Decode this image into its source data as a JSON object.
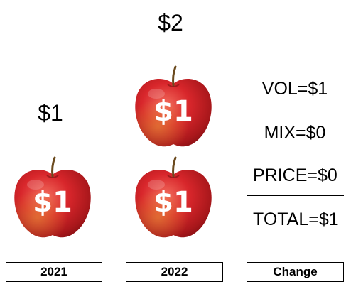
{
  "columns": {
    "year1": {
      "label": "2021",
      "total": "$1",
      "apples": [
        "$1"
      ]
    },
    "year2": {
      "label": "2022",
      "total": "$2",
      "apples": [
        "$1",
        "$1"
      ]
    },
    "change": {
      "label": "Change",
      "volume": "VOL=$1",
      "mix": "MIX=$0",
      "price": "PRICE=$0",
      "total": "TOTAL=$1"
    }
  },
  "colors": {
    "apple_red": "#d8262b",
    "apple_dark": "#9c1418",
    "apple_highlight": "#f06a5e",
    "apple_yellow": "#e9a33a",
    "stem": "#6b4a1e",
    "apple_text": "#ffffff"
  }
}
